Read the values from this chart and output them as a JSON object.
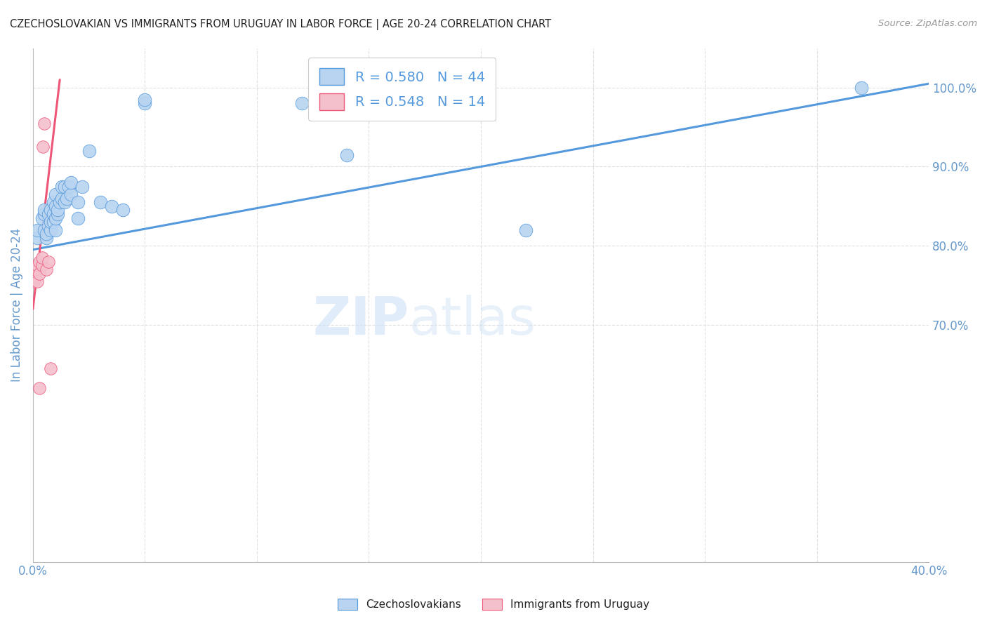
{
  "title": "CZECHOSLOVAKIAN VS IMMIGRANTS FROM URUGUAY IN LABOR FORCE | AGE 20-24 CORRELATION CHART",
  "source": "Source: ZipAtlas.com",
  "xlabel": "",
  "ylabel": "In Labor Force | Age 20-24",
  "xlim": [
    0.0,
    0.4
  ],
  "ylim": [
    0.4,
    1.05
  ],
  "xticks": [
    0.0,
    0.05,
    0.1,
    0.15,
    0.2,
    0.25,
    0.3,
    0.35,
    0.4
  ],
  "yticks": [
    0.7,
    0.8,
    0.9,
    1.0
  ],
  "ytick_labels_right": [
    "70.0%",
    "80.0%",
    "90.0%",
    "100.0%"
  ],
  "xtick_labels": [
    "0.0%",
    "",
    "",
    "",
    "",
    "",
    "",
    "",
    "40.0%"
  ],
  "blue_R": 0.58,
  "blue_N": 44,
  "pink_R": 0.548,
  "pink_N": 14,
  "blue_color": "#b8d4f0",
  "pink_color": "#f4c0cc",
  "blue_line_color": "#5599dd",
  "pink_line_color": "#ee5577",
  "watermark_zip": "ZIP",
  "watermark_atlas": "atlas",
  "blue_scatter_x": [
    0.002,
    0.002,
    0.004,
    0.005,
    0.005,
    0.005,
    0.006,
    0.006,
    0.007,
    0.007,
    0.008,
    0.008,
    0.008,
    0.009,
    0.009,
    0.009,
    0.01,
    0.01,
    0.01,
    0.01,
    0.011,
    0.011,
    0.012,
    0.013,
    0.013,
    0.014,
    0.014,
    0.015,
    0.016,
    0.017,
    0.017,
    0.02,
    0.02,
    0.022,
    0.025,
    0.03,
    0.035,
    0.04,
    0.05,
    0.05,
    0.12,
    0.14,
    0.22,
    0.37
  ],
  "blue_scatter_y": [
    0.81,
    0.82,
    0.835,
    0.82,
    0.84,
    0.845,
    0.81,
    0.815,
    0.825,
    0.84,
    0.82,
    0.83,
    0.845,
    0.83,
    0.84,
    0.855,
    0.82,
    0.835,
    0.85,
    0.865,
    0.84,
    0.845,
    0.855,
    0.86,
    0.875,
    0.855,
    0.875,
    0.86,
    0.875,
    0.865,
    0.88,
    0.835,
    0.855,
    0.875,
    0.92,
    0.855,
    0.85,
    0.845,
    0.98,
    0.985,
    0.98,
    0.915,
    0.82,
    1.0
  ],
  "pink_scatter_x": [
    0.0005,
    0.001,
    0.001,
    0.002,
    0.002,
    0.003,
    0.003,
    0.004,
    0.004,
    0.0045,
    0.005,
    0.006,
    0.007,
    0.008
  ],
  "pink_scatter_y": [
    0.755,
    0.76,
    0.77,
    0.755,
    0.775,
    0.765,
    0.78,
    0.775,
    0.785,
    0.925,
    0.955,
    0.77,
    0.78,
    0.645
  ],
  "pink_extra_x": [
    0.003
  ],
  "pink_extra_y": [
    0.62
  ],
  "blue_trend_x": [
    0.0,
    0.4
  ],
  "blue_trend_y": [
    0.795,
    1.005
  ],
  "pink_trend_x": [
    0.0,
    0.012
  ],
  "pink_trend_y": [
    0.72,
    1.01
  ],
  "dot_size_blue": 180,
  "dot_size_pink": 160,
  "background_color": "#ffffff",
  "grid_color": "#e0e0e0",
  "axis_color": "#bbbbbb",
  "title_color": "#222222",
  "axis_label_color": "#6699cc",
  "tick_color_left": "#222222",
  "tick_color_right": "#6699cc",
  "tick_color_bottom": "#6699cc",
  "legend_label_color": "#5599dd"
}
